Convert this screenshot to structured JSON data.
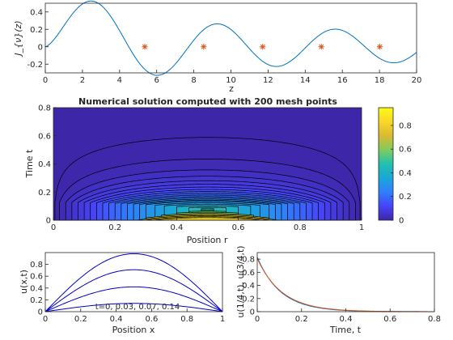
{
  "chart_data": [
    {
      "type": "line",
      "panel": "bessel",
      "xlabel": "z",
      "ylabel": "J_{ν}(z)",
      "xlim": [
        0,
        20
      ],
      "ylim": [
        -0.3,
        0.5
      ],
      "xticks": [
        0,
        2,
        4,
        6,
        8,
        10,
        12,
        14,
        16,
        18,
        20
      ],
      "yticks": [
        -0.2,
        0,
        0.2,
        0.4
      ],
      "xtick_labels": [
        "0",
        "2",
        "4",
        "6",
        "8",
        "10",
        "12",
        "14",
        "16",
        "18",
        "20"
      ],
      "ytick_labels": [
        "-0.2",
        "0",
        "0.2",
        "0.4"
      ],
      "grid": false,
      "series": [
        {
          "color": "#0072BD",
          "order": 1.5
        },
        {
          "marker": "*",
          "color": "#D95319",
          "zeros": [
            5.36,
            8.53,
            11.71,
            14.87,
            18.02
          ]
        }
      ]
    },
    {
      "type": "heatmap",
      "panel": "contour",
      "title": "Numerical solution computed with 200 mesh points",
      "xlabel": "Position r",
      "ylabel": "Time t",
      "xlim": [
        0,
        1
      ],
      "ylim": [
        0,
        0.8
      ],
      "xticks": [
        0,
        0.2,
        0.4,
        0.6,
        0.8,
        1
      ],
      "yticks": [
        0,
        0.2,
        0.4,
        0.6,
        0.8
      ],
      "xtick_labels": [
        "0",
        "0.2",
        "0.4",
        "0.6",
        "0.8",
        "1"
      ],
      "ytick_labels": [
        "0",
        "0.2",
        "0.4",
        "0.6",
        "0.8"
      ],
      "colorbar": {
        "range": [
          0,
          0.95
        ],
        "ticks": [
          0,
          0.2,
          0.4,
          0.6,
          0.8
        ],
        "tick_labels": [
          "0",
          "0.2",
          "0.4",
          "0.6",
          "0.8"
        ],
        "colormap": [
          "#3E26A8",
          "#4743F8",
          "#2F7FFB",
          "#1AA6D8",
          "#22C0AF",
          "#7FCB5E",
          "#D9BA30",
          "#FBD628",
          "#F9FB15"
        ]
      },
      "decay_rate": 9.0,
      "levels": [
        0.005,
        0.02,
        0.04,
        0.06,
        0.08,
        0.1,
        0.12,
        0.14,
        0.16,
        0.18,
        0.2,
        0.22,
        0.24,
        0.26,
        0.28,
        0.3,
        0.33,
        0.36,
        0.4,
        0.44,
        0.48,
        0.52,
        0.56,
        0.6,
        0.65,
        0.7,
        0.75,
        0.8,
        0.85
      ],
      "grid": false
    },
    {
      "type": "line",
      "panel": "profiles",
      "xlabel": "Position x",
      "ylabel": "u(x,t)",
      "xlim": [
        0,
        1
      ],
      "ylim": [
        0,
        1
      ],
      "xticks": [
        0,
        0.2,
        0.4,
        0.6,
        0.8,
        1
      ],
      "yticks": [
        0,
        0.2,
        0.4,
        0.6,
        0.8
      ],
      "xtick_labels": [
        "0",
        "0.2",
        "0.4",
        "0.6",
        "0.8",
        "1"
      ],
      "ytick_labels": [
        "0",
        "0.2",
        "0.4",
        "0.6",
        "0.8"
      ],
      "annotation": "t=0, 0.03, 0.07, 0.14",
      "series": [
        {
          "t": 0,
          "amplitude": 0.98,
          "color": "#0000CC"
        },
        {
          "t": 0.03,
          "amplitude": 0.71,
          "color": "#0000CC"
        },
        {
          "t": 0.07,
          "amplitude": 0.42,
          "color": "#0000CC"
        },
        {
          "t": 0.14,
          "amplitude": 0.14,
          "color": "#0000CC"
        }
      ],
      "grid": false
    },
    {
      "type": "line",
      "panel": "history",
      "xlabel": "Time, t",
      "ylabel": "u(1/4,t), u(3/4,t)",
      "xlim": [
        0,
        0.8
      ],
      "ylim": [
        0,
        0.9
      ],
      "xticks": [
        0,
        0.2,
        0.4,
        0.6,
        0.8
      ],
      "yticks": [
        0,
        0.2,
        0.4,
        0.6,
        0.8
      ],
      "xtick_labels": [
        "0",
        "0.2",
        "0.4",
        "0.6",
        "0.8"
      ],
      "ytick_labels": [
        "0",
        "0.2",
        "0.4",
        "0.6",
        "0.8"
      ],
      "series": [
        {
          "u0": 0.83,
          "rate": 9.5,
          "color": "#0072BD"
        },
        {
          "u0": 0.81,
          "rate": 9.0,
          "color": "#D95319"
        }
      ],
      "grid": false
    }
  ]
}
